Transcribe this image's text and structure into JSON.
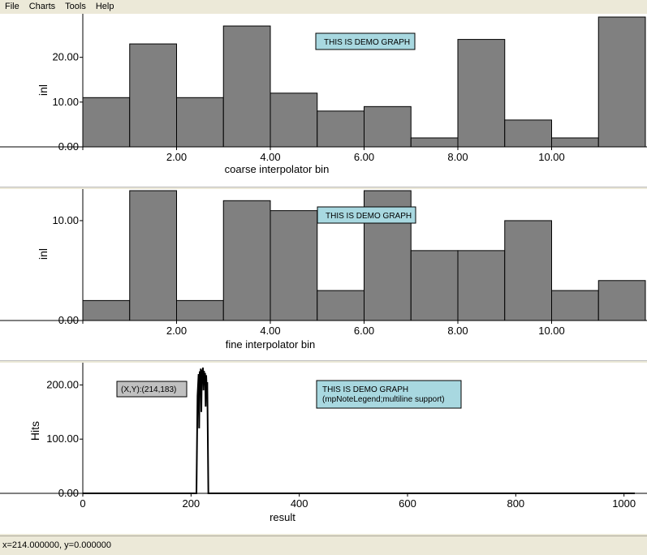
{
  "menu": {
    "items": [
      "File",
      "Charts",
      "Tools",
      "Help"
    ]
  },
  "colors": {
    "bar_fill": "#808080",
    "note_fill": "#a8d8e0",
    "coords_fill": "#c0c0c0",
    "line": "#000000"
  },
  "status": {
    "text": "x=214.000000, y=0.000000"
  },
  "chart_data": [
    {
      "type": "bar",
      "xlabel": "coarse interpolator bin",
      "ylabel": "inl",
      "note": "THIS IS DEMO GRAPH",
      "x_ticks": [
        "2.00",
        "4.00",
        "6.00",
        "8.00",
        "10.00"
      ],
      "x_tick_values": [
        2,
        4,
        6,
        8,
        10
      ],
      "y_ticks": [
        "0.00",
        "10.00",
        "20.00"
      ],
      "y_tick_values": [
        0,
        10,
        20
      ],
      "bins": [
        0,
        1,
        2,
        3,
        4,
        5,
        6,
        7,
        8,
        9,
        10,
        11
      ],
      "values": [
        11,
        23,
        11,
        27,
        12,
        8,
        9,
        2,
        24,
        6,
        2,
        29
      ],
      "xlim": [
        0,
        12
      ],
      "ylim": [
        0,
        29
      ]
    },
    {
      "type": "bar",
      "xlabel": "fine interpolator bin",
      "ylabel": "inl",
      "note": "THIS IS DEMO GRAPH",
      "x_ticks": [
        "2.00",
        "4.00",
        "6.00",
        "8.00",
        "10.00"
      ],
      "x_tick_values": [
        2,
        4,
        6,
        8,
        10
      ],
      "y_ticks": [
        "0.00",
        "10.00"
      ],
      "y_tick_values": [
        0,
        10
      ],
      "bins": [
        0,
        1,
        2,
        3,
        4,
        5,
        6,
        7,
        8,
        9,
        10,
        11
      ],
      "values": [
        2,
        13,
        2,
        12,
        11,
        3,
        13,
        7,
        7,
        10,
        3,
        4
      ],
      "xlim": [
        0,
        12
      ],
      "ylim": [
        0,
        13
      ]
    },
    {
      "type": "line",
      "xlabel": "result",
      "ylabel": "Hits",
      "note_lines": [
        "THIS IS DEMO GRAPH",
        "(mpNoteLegend;multiline support)"
      ],
      "coords": "(X,Y):(214,183)",
      "x_ticks": [
        "0",
        "200",
        "400",
        "600",
        "800",
        "1000"
      ],
      "x_tick_values": [
        0,
        200,
        400,
        600,
        800,
        1000
      ],
      "y_ticks": [
        "0.00",
        "100.00",
        "200.00"
      ],
      "y_tick_values": [
        0,
        100,
        200
      ],
      "xlim": [
        0,
        1020
      ],
      "ylim": [
        0,
        235
      ],
      "x": [
        0,
        210,
        212,
        214,
        215,
        216,
        217,
        218,
        219,
        220,
        221,
        222,
        223,
        224,
        225,
        226,
        227,
        228,
        229,
        230,
        232,
        1020
      ],
      "y": [
        0,
        0,
        180,
        220,
        120,
        225,
        200,
        230,
        150,
        228,
        210,
        232,
        190,
        226,
        200,
        222,
        160,
        218,
        190,
        205,
        0,
        0
      ]
    }
  ]
}
